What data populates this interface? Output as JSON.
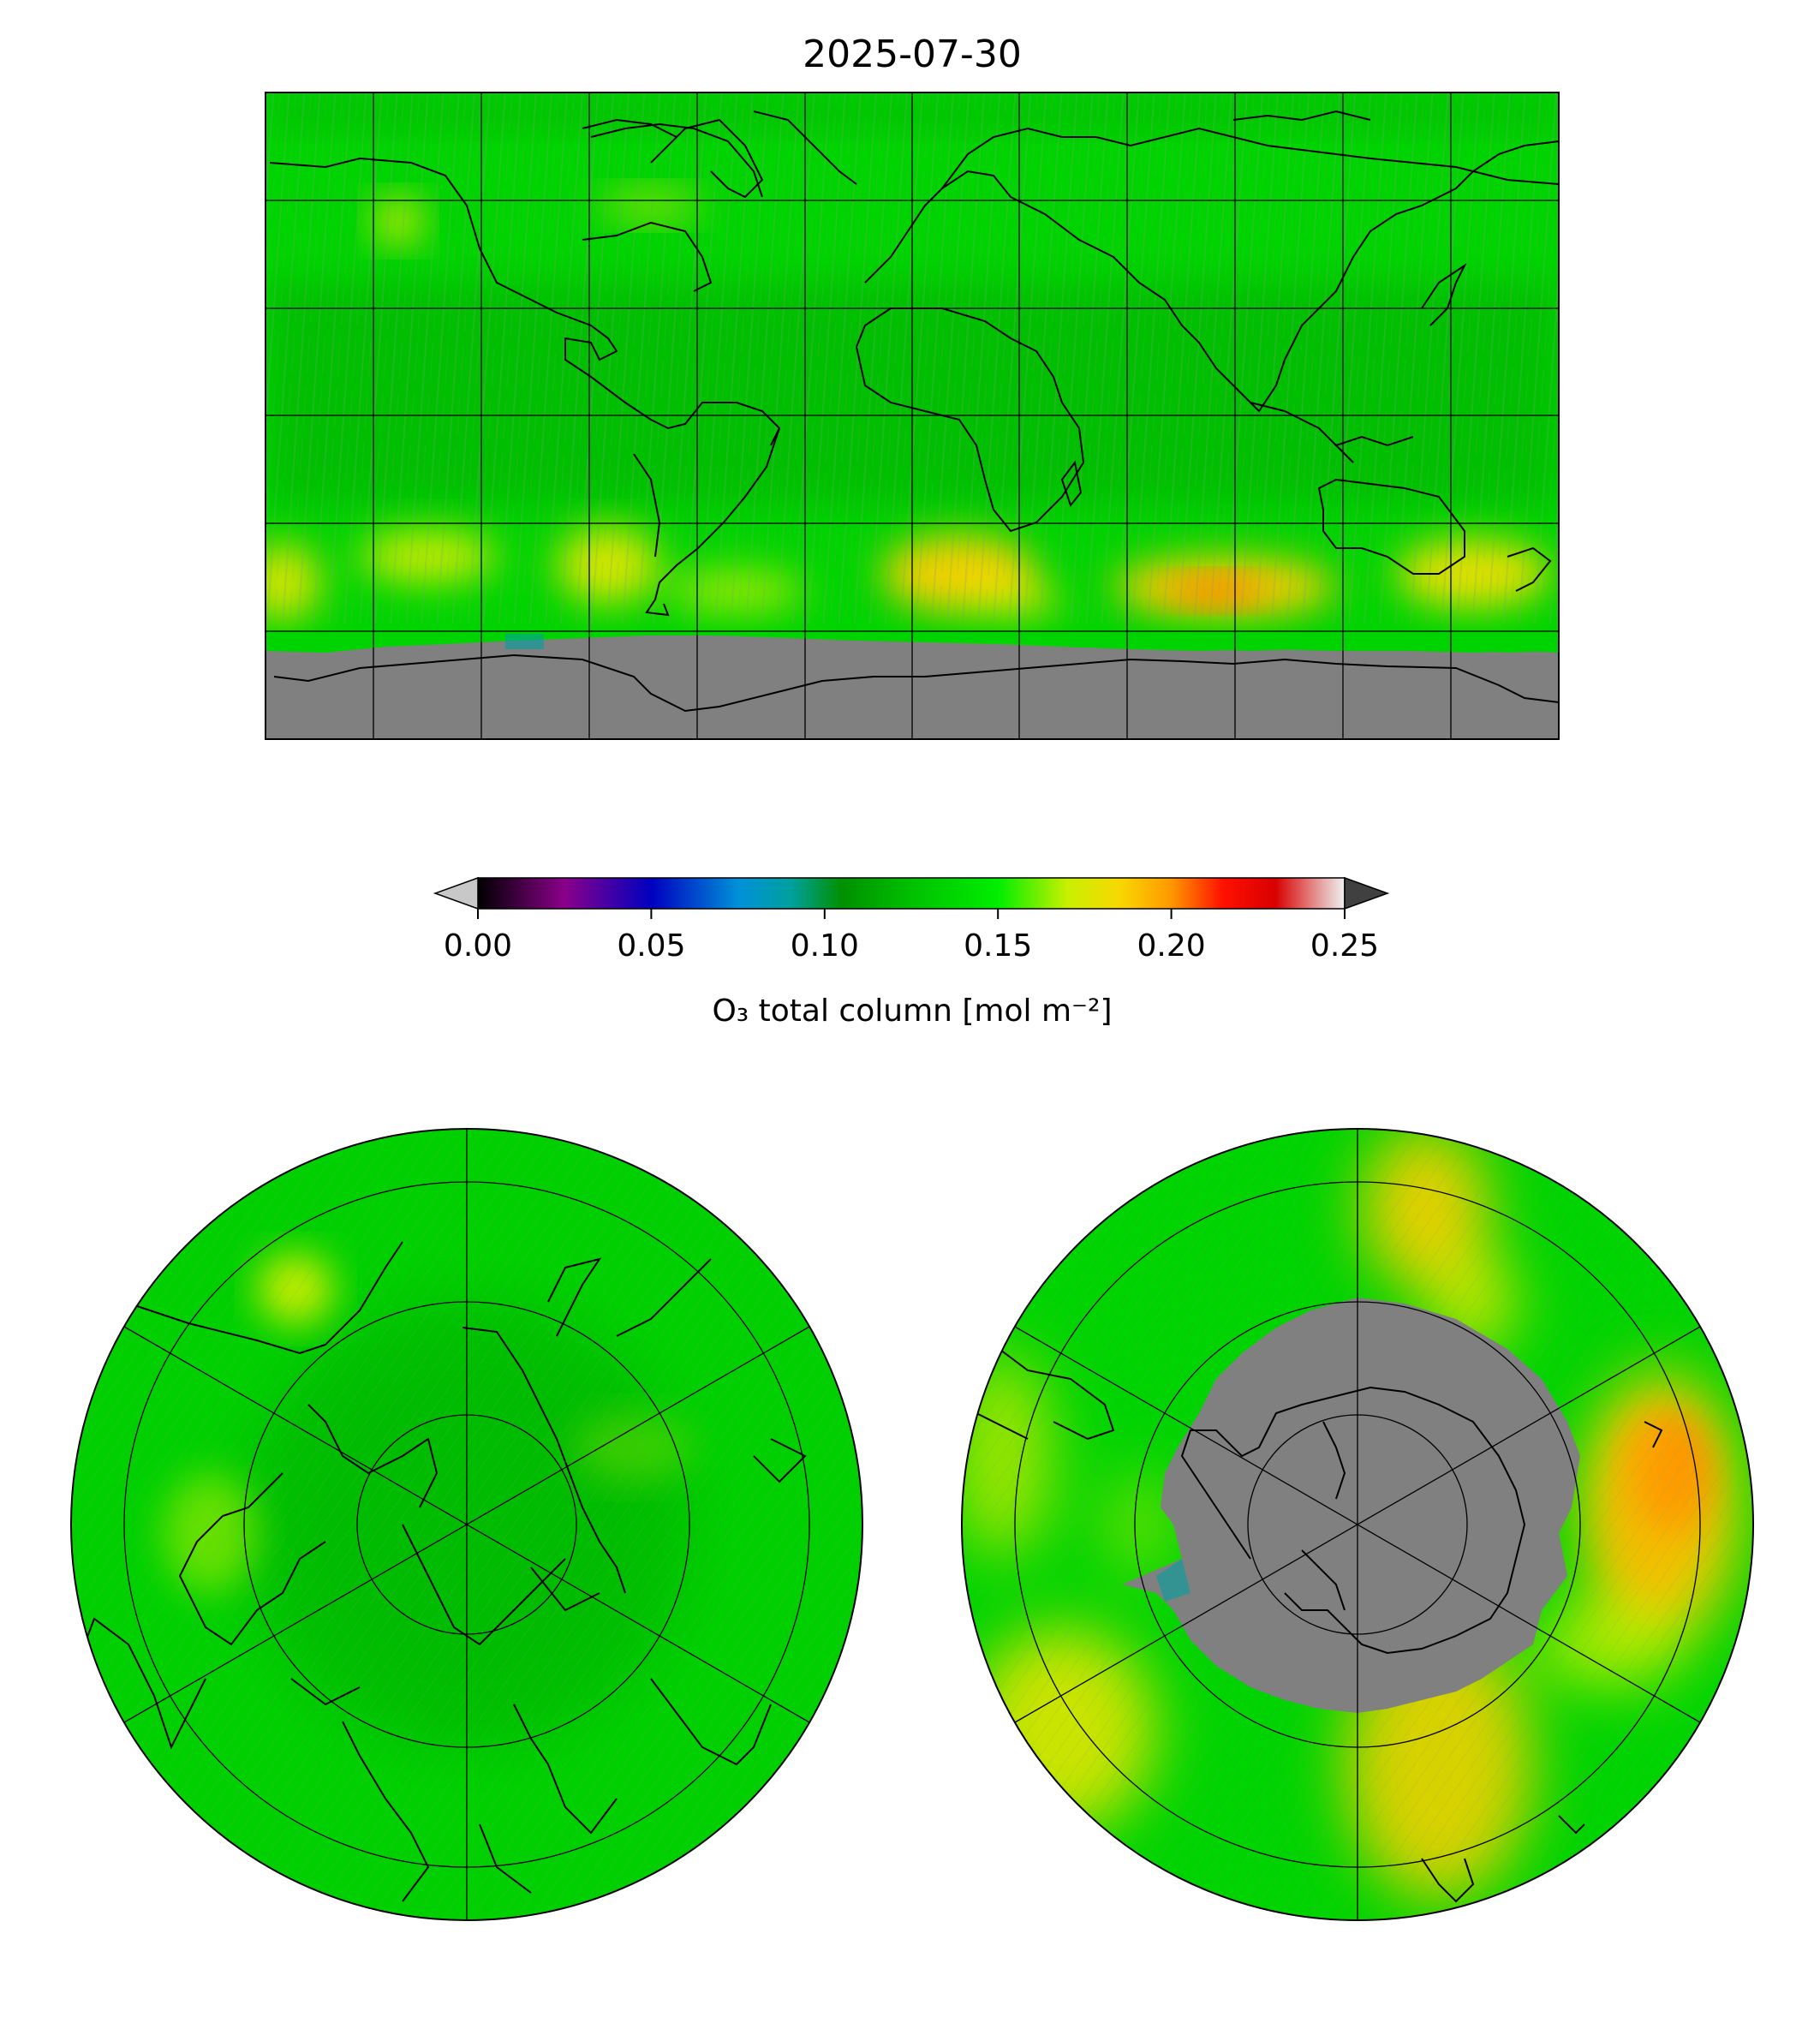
{
  "title": "2025-07-30",
  "colorbar": {
    "label": "O₃ total column [mol m⁻²]",
    "ticks": [
      "0.00",
      "0.05",
      "0.10",
      "0.15",
      "0.20",
      "0.25"
    ],
    "range": [
      0.0,
      0.25
    ],
    "extend": "both",
    "under_color": "#c8c8c8",
    "over_color": "#404040",
    "stops": [
      {
        "v": 0.0,
        "c": "#000000"
      },
      {
        "v": 0.025,
        "c": "#8a008a"
      },
      {
        "v": 0.05,
        "c": "#0000c0"
      },
      {
        "v": 0.075,
        "c": "#0090d8"
      },
      {
        "v": 0.09,
        "c": "#00a0a0"
      },
      {
        "v": 0.105,
        "c": "#009000"
      },
      {
        "v": 0.125,
        "c": "#00c000"
      },
      {
        "v": 0.15,
        "c": "#00ee00"
      },
      {
        "v": 0.17,
        "c": "#c8f000"
      },
      {
        "v": 0.185,
        "c": "#f8d800"
      },
      {
        "v": 0.2,
        "c": "#ff9800"
      },
      {
        "v": 0.215,
        "c": "#ff1000"
      },
      {
        "v": 0.23,
        "c": "#d80000"
      },
      {
        "v": 0.245,
        "c": "#e8b8b8"
      },
      {
        "v": 0.25,
        "c": "#f0f0f0"
      }
    ]
  },
  "colors": {
    "background_field": "#00d800",
    "dark_field": "#00b400",
    "ozone_high": "#ffb000",
    "ozone_max": "#ff6a00",
    "no_data": "#808080",
    "coastline": "#000000",
    "gridline": "#000000"
  },
  "maps": [
    {
      "name": "global",
      "projection": "plate-carree",
      "grid": true
    },
    {
      "name": "north-pole",
      "projection": "north-polar-stereographic",
      "grid": true
    },
    {
      "name": "south-pole",
      "projection": "south-polar-stereographic",
      "grid": true
    }
  ]
}
